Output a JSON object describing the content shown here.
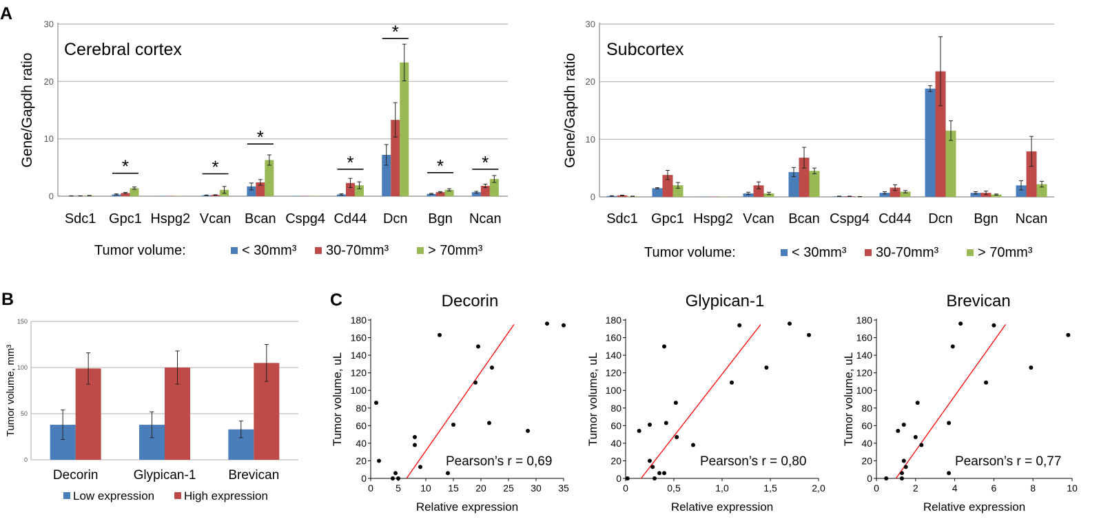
{
  "figure": {
    "panel_labels": [
      "A",
      "B",
      "C"
    ],
    "legend_a_title": "Tumor volume:",
    "series_names": [
      "< 30mm³",
      "30-70mm³",
      "> 70mm³"
    ],
    "significance_mark": "*",
    "colors": {
      "blue": "#4a7ebb",
      "red": "#be4b48",
      "green": "#98b954",
      "fit": "#ff0000",
      "grid": "#b0b0b0"
    }
  },
  "chart_data": [
    {
      "id": "a1",
      "type": "bar",
      "title": "Cerebral cortex",
      "ylabel": "Gene/Gapdh ratio",
      "xlabel": "",
      "ylim": [
        0,
        30
      ],
      "yticks": [
        0,
        10,
        20,
        30
      ],
      "categories": [
        "Sdc1",
        "Gpc1",
        "Hspg2",
        "Vcan",
        "Bcan",
        "Cspg4",
        "Cd44",
        "Dcn",
        "Bgn",
        "Ncan"
      ],
      "series": [
        {
          "name": "< 30mm³",
          "values": [
            0.05,
            0.3,
            0.0,
            0.15,
            1.7,
            0.0,
            0.3,
            7.2,
            0.4,
            0.7
          ],
          "errors": [
            0.02,
            0.1,
            0.0,
            0.05,
            0.6,
            0.0,
            0.1,
            1.8,
            0.1,
            0.15
          ]
        },
        {
          "name": "30-70mm³",
          "values": [
            0.05,
            0.55,
            0.0,
            0.2,
            2.4,
            0.0,
            2.3,
            13.3,
            0.7,
            1.8
          ],
          "errors": [
            0.02,
            0.1,
            0.0,
            0.05,
            0.5,
            0.0,
            0.8,
            3.0,
            0.1,
            0.3
          ]
        },
        {
          "name": "> 70mm³",
          "values": [
            0.1,
            1.4,
            0.0,
            1.1,
            6.3,
            0.0,
            1.9,
            23.3,
            1.1,
            3.0
          ],
          "errors": [
            0.03,
            0.2,
            0.0,
            0.6,
            0.9,
            0.0,
            0.6,
            3.2,
            0.2,
            0.6
          ]
        }
      ],
      "significance": [
        1,
        3,
        4,
        6,
        7,
        8,
        9
      ],
      "significance_level": [
        4.0,
        3.9,
        9.1,
        4.7,
        27.5,
        4.1,
        4.7
      ]
    },
    {
      "id": "a2",
      "type": "bar",
      "title": "Subcortex",
      "ylabel": "Gene/Gapdh ratio",
      "xlabel": "",
      "ylim": [
        0,
        30
      ],
      "yticks": [
        0,
        10,
        20,
        30
      ],
      "categories": [
        "Sdc1",
        "Gpc1",
        "Hspg2",
        "Vcan",
        "Bcan",
        "Cspg4",
        "Cd44",
        "Dcn",
        "Bgn",
        "Ncan"
      ],
      "series": [
        {
          "name": "< 30mm³",
          "values": [
            0.15,
            1.5,
            0.0,
            0.6,
            4.3,
            0.1,
            0.7,
            18.8,
            0.7,
            2.0
          ],
          "errors": [
            0.05,
            0.1,
            0.0,
            0.2,
            0.8,
            0.03,
            0.2,
            0.5,
            0.2,
            0.8
          ]
        },
        {
          "name": "30-70mm³",
          "values": [
            0.25,
            3.8,
            0.0,
            2.0,
            6.8,
            0.1,
            1.6,
            21.8,
            0.7,
            7.9
          ],
          "errors": [
            0.05,
            0.8,
            0.0,
            0.6,
            1.8,
            0.03,
            0.5,
            6.0,
            0.3,
            2.6
          ]
        },
        {
          "name": "> 70mm³",
          "values": [
            0.1,
            2.0,
            0.0,
            0.6,
            4.5,
            0.05,
            0.9,
            11.5,
            0.4,
            2.2
          ],
          "errors": [
            0.03,
            0.5,
            0.0,
            0.2,
            0.5,
            0.02,
            0.2,
            1.7,
            0.1,
            0.5
          ]
        }
      ]
    },
    {
      "id": "b",
      "type": "bar",
      "title": "",
      "ylabel": "Tumor volume, mm³",
      "xlabel": "",
      "ylim": [
        0,
        150
      ],
      "yticks": [
        0,
        50,
        100,
        150
      ],
      "categories": [
        "Decorin",
        "Glypican-1",
        "Brevican"
      ],
      "series": [
        {
          "name": "Low expression",
          "values": [
            38,
            38,
            33
          ],
          "errors": [
            16,
            14,
            9
          ]
        },
        {
          "name": "High expression",
          "values": [
            99,
            100,
            105
          ],
          "errors": [
            17,
            18,
            20
          ]
        }
      ]
    },
    {
      "id": "c1",
      "type": "scatter",
      "title": "Decorin",
      "xlabel": "Relative expression",
      "ylabel": "Tumor volume, uL",
      "xlim": [
        0,
        35
      ],
      "ylim": [
        0,
        180
      ],
      "xticks": [
        0,
        5,
        10,
        15,
        20,
        25,
        30,
        35
      ],
      "xtick_labels": [
        "0",
        "5",
        "10",
        "15",
        "20",
        "25",
        "30",
        "35"
      ],
      "yticks": [
        0,
        20,
        40,
        60,
        80,
        100,
        120,
        140,
        160,
        180
      ],
      "annotation": "Pearson’s r = 0,69",
      "fit_line": [
        [
          6.5,
          0
        ],
        [
          26,
          175
        ]
      ],
      "points": [
        [
          1,
          86
        ],
        [
          1.5,
          20
        ],
        [
          4,
          0
        ],
        [
          4.5,
          6
        ],
        [
          5,
          0
        ],
        [
          8,
          47
        ],
        [
          8,
          38
        ],
        [
          9,
          13
        ],
        [
          12.5,
          163
        ],
        [
          14,
          6
        ],
        [
          15,
          61
        ],
        [
          19,
          109
        ],
        [
          19.5,
          150
        ],
        [
          21.5,
          63
        ],
        [
          22,
          126
        ],
        [
          28.5,
          54
        ],
        [
          32,
          176
        ],
        [
          35,
          174
        ]
      ]
    },
    {
      "id": "c2",
      "type": "scatter",
      "title": "Glypican-1",
      "xlabel": "Relative expression",
      "ylabel": "Tumor volume, uL",
      "xlim": [
        0,
        2
      ],
      "ylim": [
        0,
        180
      ],
      "xticks": [
        0,
        0.5,
        1,
        1.5,
        2
      ],
      "xtick_labels": [
        "0",
        "0,5",
        "1,0",
        "1,5",
        "2,0"
      ],
      "yticks": [
        0,
        20,
        40,
        60,
        80,
        100,
        120,
        140,
        160,
        180
      ],
      "annotation": "Pearson’s r = 0,80",
      "fit_line": [
        [
          0.16,
          0
        ],
        [
          1.4,
          175
        ]
      ],
      "points": [
        [
          0.02,
          0
        ],
        [
          0.14,
          54
        ],
        [
          0.25,
          61
        ],
        [
          0.25,
          20
        ],
        [
          0.28,
          13
        ],
        [
          0.3,
          0
        ],
        [
          0.35,
          6
        ],
        [
          0.4,
          6
        ],
        [
          0.4,
          150
        ],
        [
          0.42,
          63
        ],
        [
          0.52,
          86
        ],
        [
          0.53,
          47
        ],
        [
          0.7,
          38
        ],
        [
          1.1,
          109
        ],
        [
          1.18,
          174
        ],
        [
          1.46,
          126
        ],
        [
          1.7,
          176
        ],
        [
          1.9,
          163
        ]
      ]
    },
    {
      "id": "c3",
      "type": "scatter",
      "title": "Brevican",
      "xlabel": "Relative expression",
      "ylabel": "Tumor volume, uL",
      "xlim": [
        0,
        10
      ],
      "ylim": [
        0,
        180
      ],
      "xticks": [
        0,
        2,
        4,
        6,
        8,
        10
      ],
      "xtick_labels": [
        "0",
        "2",
        "4",
        "6",
        "8",
        "10"
      ],
      "yticks": [
        0,
        20,
        40,
        60,
        80,
        100,
        120,
        140,
        160,
        180
      ],
      "annotation": "Pearson’s r = 0,77",
      "fit_line": [
        [
          1.0,
          0
        ],
        [
          6.6,
          175
        ]
      ],
      "points": [
        [
          0.5,
          0
        ],
        [
          1.1,
          54
        ],
        [
          1.3,
          0
        ],
        [
          1.3,
          6
        ],
        [
          1.4,
          61
        ],
        [
          1.4,
          20
        ],
        [
          1.5,
          13
        ],
        [
          2.0,
          47
        ],
        [
          2.1,
          86
        ],
        [
          2.3,
          38
        ],
        [
          3.7,
          6
        ],
        [
          3.7,
          63
        ],
        [
          3.9,
          150
        ],
        [
          4.3,
          176
        ],
        [
          5.6,
          109
        ],
        [
          6.0,
          174
        ],
        [
          7.9,
          126
        ],
        [
          9.8,
          163
        ]
      ]
    }
  ]
}
